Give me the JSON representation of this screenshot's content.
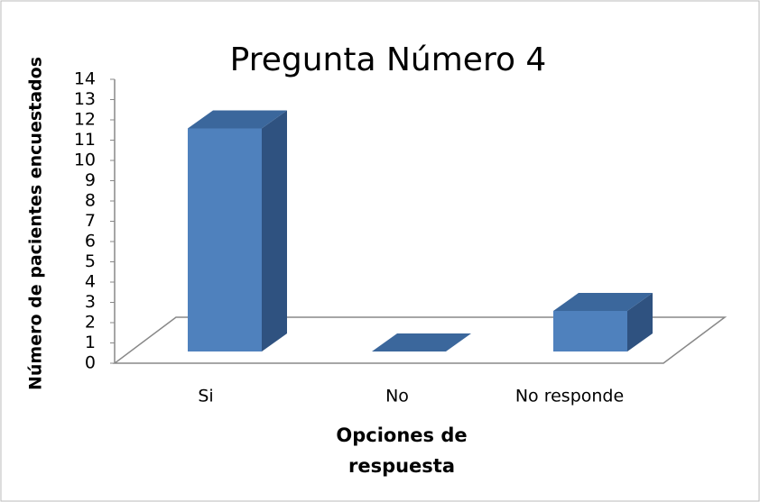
{
  "chart_data": {
    "type": "bar3d",
    "title": "Pregunta Número 4",
    "categories": [
      "Si",
      "No",
      "No responde"
    ],
    "values": [
      11,
      0,
      2
    ],
    "color": "#4f81bd",
    "ylim": [
      0,
      14
    ],
    "yticks": [
      0,
      1,
      2,
      3,
      4,
      5,
      6,
      7,
      8,
      9,
      10,
      11,
      12,
      13,
      14
    ],
    "y_label": "Número de pacientes encuestados",
    "x_label": "Opciones de respuesta"
  }
}
